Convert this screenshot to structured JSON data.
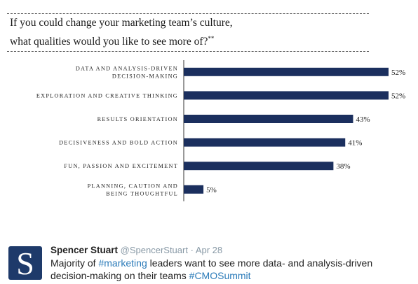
{
  "chart_card": {
    "question_line1": "If you could change your marketing team’s culture,",
    "question_line2": "what qualities would you like to see more of?",
    "question_marker": "**"
  },
  "chart_data": {
    "type": "bar",
    "orientation": "horizontal",
    "title": "If you could change your marketing team’s culture, what qualities would you like to see more of?**",
    "categories": [
      [
        "DATA AND ANALYSIS-DRIVEN",
        "DECISION-MAKING"
      ],
      [
        "EXPLORATION AND CREATIVE THINKING"
      ],
      [
        "RESULTS ORIENTATION"
      ],
      [
        "DECISIVENESS AND BOLD ACTION"
      ],
      [
        "FUN, PASSION AND EXCITEMENT"
      ],
      [
        "PLANNING, CAUTION AND",
        "BEING THOUGHTFUL"
      ]
    ],
    "values": [
      52,
      52,
      43,
      41,
      38,
      5
    ],
    "value_labels": [
      "52%",
      "52%",
      "43%",
      "41%",
      "38%",
      "5%"
    ],
    "xlim": [
      0,
      52
    ],
    "grid": false,
    "colors": {
      "bar": "#1b2f5e"
    }
  },
  "tweet": {
    "avatar_letter": "S",
    "name": "Spencer Stuart",
    "handle": "@SpencerStuart",
    "separator": "·",
    "date": "Apr 28",
    "text_part1": "Majority of ",
    "hashtag1": "#marketing",
    "text_part2": " leaders want to see more data- and analysis-driven decision-making on their teams ",
    "hashtag2": "#CMOSummit",
    "colors": {
      "avatar_bg": "#1e3a6a",
      "hashtag": "#2b7bb9",
      "meta": "#8899a6"
    }
  }
}
